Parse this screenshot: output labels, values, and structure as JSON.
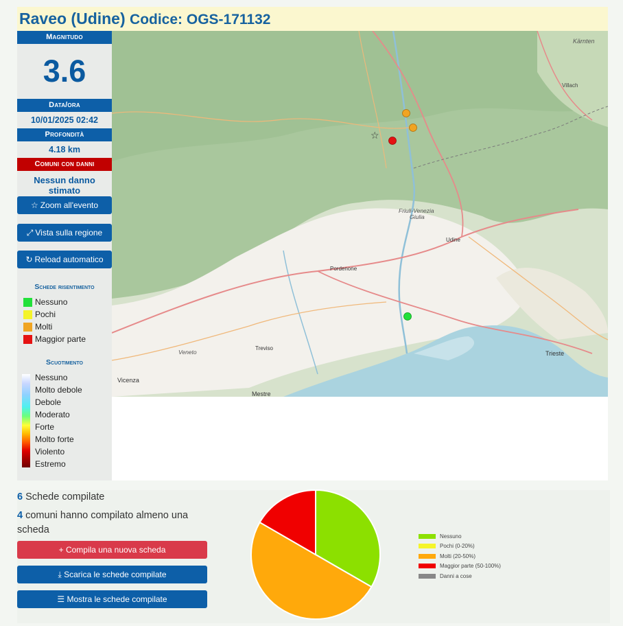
{
  "header": {
    "place": "Raveo (Udine)",
    "code_label": "Codice: OGS-171132"
  },
  "sidebar": {
    "magnitude_label": "Magnitudo",
    "magnitude_value": "3.6",
    "datetime_label": "Data/ora",
    "datetime_value": "10/01/2025 02:42",
    "depth_label": "Profondità",
    "depth_value": "4.18 km",
    "damage_label": "Comuni con danni",
    "damage_value": "Nessun danno stimato",
    "buttons": [
      {
        "label": "Zoom all'evento",
        "icon": "star-icon"
      },
      {
        "label": "Vista sulla regione",
        "icon": "expand-icon"
      },
      {
        "label": "Reload automatico",
        "icon": "refresh-icon"
      }
    ],
    "reports_legend_title": "Schede risentimento",
    "reports_legend": [
      {
        "label": "Nessuno",
        "color": "#22e03a"
      },
      {
        "label": "Pochi",
        "color": "#f4f42a"
      },
      {
        "label": "Molti",
        "color": "#f0a422"
      },
      {
        "label": "Maggior parte",
        "color": "#e51212"
      }
    ],
    "shaking_legend_title": "Scuotimento",
    "shaking_legend": [
      "Nessuno",
      "Molto debole",
      "Debole",
      "Moderato",
      "Forte",
      "Molto forte",
      "Violento",
      "Estremo"
    ]
  },
  "map": {
    "labels": [
      "Kärnten",
      "Villach",
      "Friuli-Venezia",
      "Giulia",
      "Udine",
      "Pordenone",
      "Treviso",
      "Veneto",
      "Vicenza",
      "Mestre",
      "Trieste"
    ],
    "markers": [
      {
        "type": "epicenter",
        "icon": "star-icon"
      },
      {
        "type": "report",
        "category": "Molti",
        "color": "#f0a422"
      },
      {
        "type": "report",
        "category": "Molti",
        "color": "#f0a422"
      },
      {
        "type": "report",
        "category": "Maggior parte",
        "color": "#e51212"
      },
      {
        "type": "report",
        "category": "Nessuno",
        "color": "#22e03a"
      }
    ]
  },
  "summary": {
    "reports_count": "6",
    "reports_text": "Schede compilate",
    "municipalities_count": "4",
    "municipalities_text_line1": "comuni hanno compilato almeno una",
    "municipalities_text_line2": "scheda",
    "buttons": [
      {
        "label": "Compila una nuova scheda",
        "icon": "plus-icon",
        "color": "#d93a4a"
      },
      {
        "label": "Scarica le schede compilate",
        "icon": "download-icon",
        "color": "#0d5fa8"
      },
      {
        "label": "Mostra le schede compilate",
        "icon": "list-icon",
        "color": "#0d5fa8"
      }
    ]
  },
  "chart_data": {
    "type": "pie",
    "slices": [
      {
        "name": "Nessuno",
        "value": 2,
        "color": "#8ce000"
      },
      {
        "name": "Pochi (0-20%)",
        "value": 0,
        "color": "#f5f52a"
      },
      {
        "name": "Molti (20-50%)",
        "value": 3,
        "color": "#ffa90b"
      },
      {
        "name": "Maggior parte (50-100%)",
        "value": 1,
        "color": "#f00000"
      },
      {
        "name": "Danni a cose",
        "value": 0,
        "color": "#888888"
      }
    ],
    "legend_position": "right"
  }
}
